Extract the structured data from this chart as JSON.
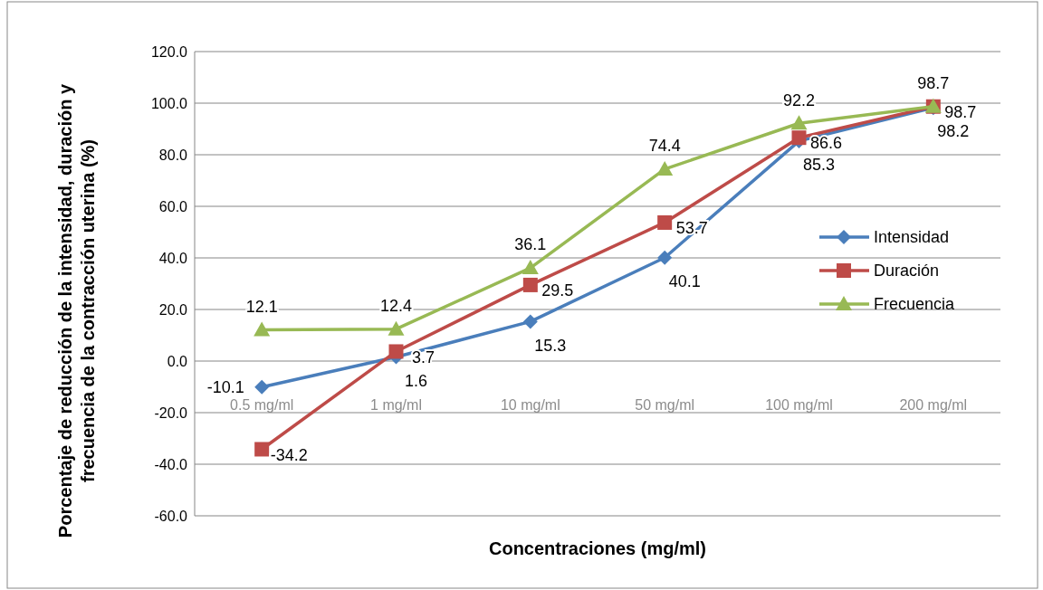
{
  "chart_data": {
    "type": "line",
    "xlabel": "Concentraciones (mg/ml)",
    "ylabel": "Porcentaje de reducción de la intensidad, duración y frecuencia de la contracción uterina (%)",
    "categories": [
      "0.5 mg/ml",
      "1 mg/ml",
      "10 mg/ml",
      "50 mg/ml",
      "100 mg/ml",
      "200 mg/ml"
    ],
    "series": [
      {
        "name": "Intensidad",
        "color": "#4a7ebb",
        "marker": "diamond",
        "values": [
          -10.1,
          1.6,
          15.3,
          40.1,
          85.3,
          98.2
        ]
      },
      {
        "name": "Duración",
        "color": "#be4b48",
        "marker": "square",
        "values": [
          -34.2,
          3.7,
          29.5,
          53.7,
          86.6,
          98.7
        ]
      },
      {
        "name": "Frecuencia",
        "color": "#98b954",
        "marker": "triangle",
        "values": [
          12.1,
          12.4,
          36.1,
          74.4,
          92.2,
          98.7
        ]
      }
    ],
    "ylim": [
      -60,
      120
    ],
    "yticks": [
      {
        "value": -60,
        "label": "-60.0"
      },
      {
        "value": -40,
        "label": "-40.0"
      },
      {
        "value": -20,
        "label": "-20.0"
      },
      {
        "value": 0,
        "label": "0.0"
      },
      {
        "value": 20,
        "label": "20.0"
      },
      {
        "value": 40,
        "label": "40.0"
      },
      {
        "value": 60,
        "label": "60.0"
      },
      {
        "value": 80,
        "label": "80.0"
      },
      {
        "value": 100,
        "label": "100.0"
      },
      {
        "value": 120,
        "label": "120.0"
      }
    ],
    "grid": "y",
    "legend": "right",
    "data_labels": true
  }
}
